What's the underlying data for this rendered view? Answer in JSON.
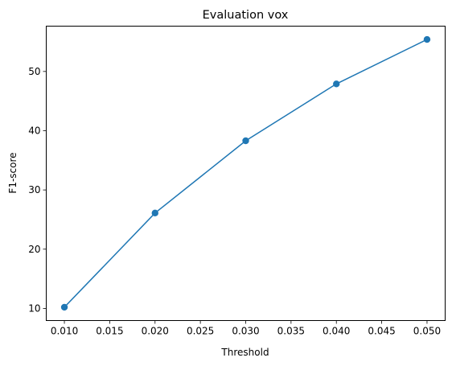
{
  "chart_data": {
    "type": "line",
    "title": "Evaluation vox",
    "xlabel": "Threshold",
    "ylabel": "F1-score",
    "x": [
      0.01,
      0.02,
      0.03,
      0.04,
      0.05
    ],
    "series": [
      {
        "values": [
          10.2,
          26.1,
          38.3,
          47.9,
          55.4
        ],
        "color": "#1f77b4",
        "marker": "circle"
      }
    ],
    "xticks": [
      "0.010",
      "0.015",
      "0.020",
      "0.025",
      "0.030",
      "0.035",
      "0.040",
      "0.045",
      "0.050"
    ],
    "xtick_values": [
      0.01,
      0.015,
      0.02,
      0.025,
      0.03,
      0.035,
      0.04,
      0.045,
      0.05
    ],
    "yticks": [
      "10",
      "20",
      "30",
      "40",
      "50"
    ],
    "ytick_values": [
      10,
      20,
      30,
      40,
      50
    ],
    "xlim": [
      0.008,
      0.052
    ],
    "ylim": [
      7.95,
      57.65
    ],
    "grid": false,
    "legend": "none"
  }
}
